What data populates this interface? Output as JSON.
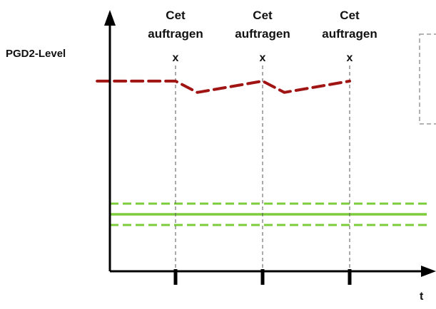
{
  "y_axis_label": "PGD2-Level",
  "x_axis_label": "t",
  "application_marker": {
    "line1": "Cet",
    "line2": "auftragen",
    "mark": "x"
  },
  "colors": {
    "axis": "#000000",
    "level_curve": "#a01414",
    "threshold_band": "#7dcc3c",
    "guide": "#555555",
    "legend_box": "#999999"
  },
  "chart_data": {
    "type": "line",
    "x_axis": "t",
    "y_axis": "PGD2-Level",
    "application_times": [
      1,
      2,
      3
    ],
    "x_range": [
      0,
      4
    ],
    "y_range": [
      0,
      10
    ],
    "series": [
      {
        "style": "dashed",
        "color": "#a01414",
        "x": [
          0.1,
          1.0,
          1.25,
          2.0,
          2.25,
          3.0
        ],
        "y": [
          8.4,
          8.4,
          7.9,
          8.4,
          7.9,
          8.4
        ]
      }
    ],
    "band": {
      "center": 2.6,
      "upper": 3.0,
      "lower": 2.2
    }
  }
}
